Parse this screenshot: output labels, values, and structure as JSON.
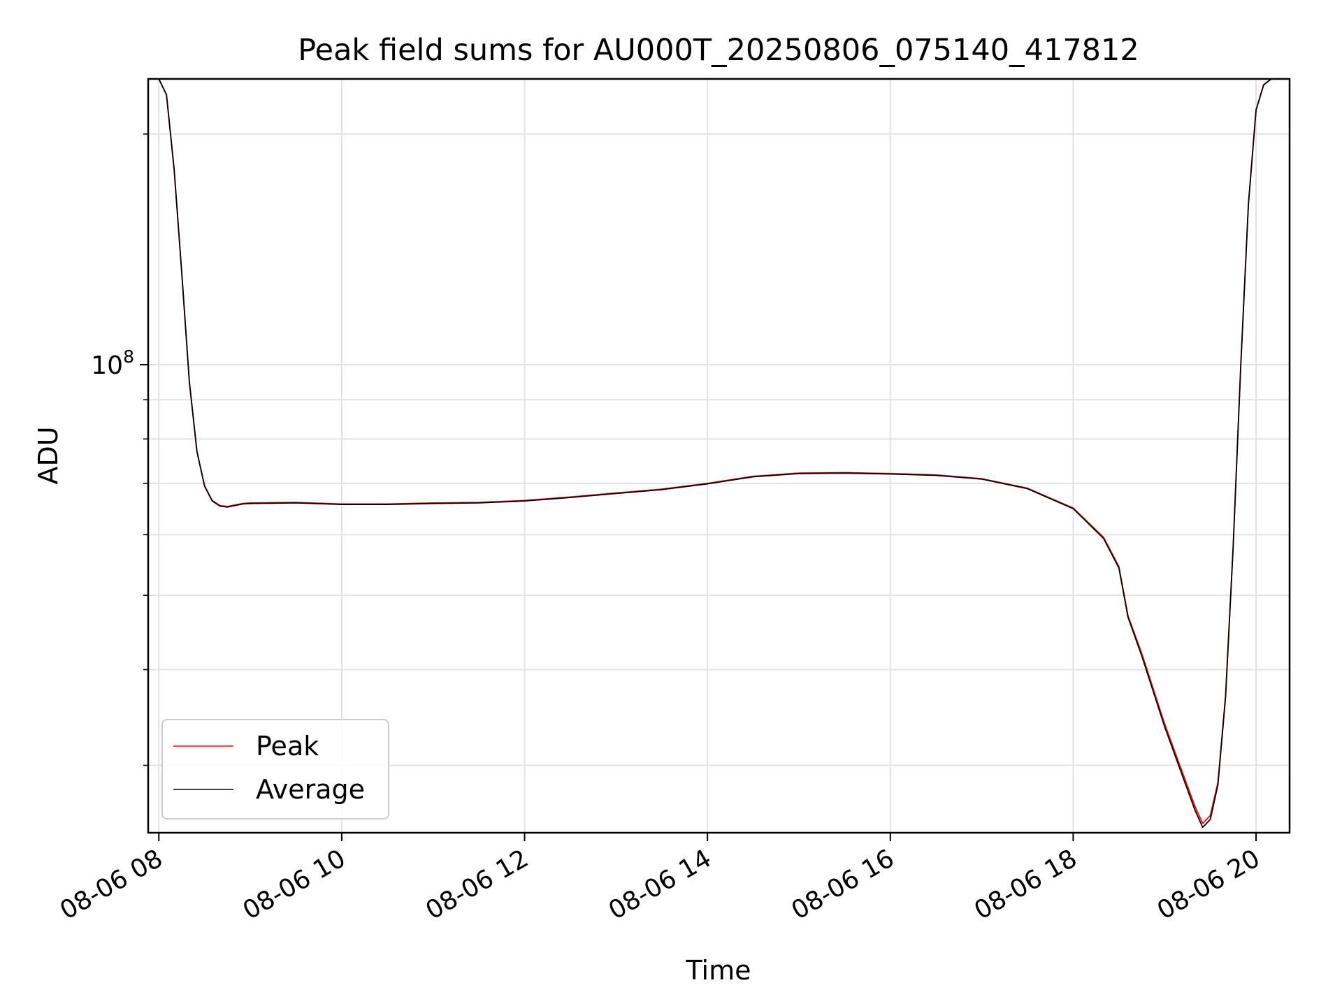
{
  "chart_data": {
    "type": "line",
    "title": "Peak field sums for AU000T_20250806_075140_417812",
    "xlabel": "Time",
    "ylabel": "ADU",
    "yscale": "log",
    "x_tick_labels": [
      "08-06 08",
      "08-06 10",
      "08-06 12",
      "08-06 14",
      "08-06 16",
      "08-06 18",
      "08-06 20"
    ],
    "y_tick_labels": [
      {
        "base": "10",
        "exp": "8"
      }
    ],
    "xlim": [
      "08-06 07:53",
      "08-06 20:22"
    ],
    "ylim": [
      24500000,
      236000000
    ],
    "grid": true,
    "legend": {
      "position": "lower-left",
      "entries": [
        "Peak",
        "Average"
      ]
    },
    "colors": {
      "Peak": "#ff0000",
      "Average": "#000000"
    },
    "x": [
      "08-06 08:00",
      "08-06 08:05",
      "08-06 08:10",
      "08-06 08:15",
      "08-06 08:20",
      "08-06 08:25",
      "08-06 08:30",
      "08-06 08:35",
      "08-06 08:40",
      "08-06 08:45",
      "08-06 08:50",
      "08-06 08:55",
      "08-06 09:00",
      "08-06 09:30",
      "08-06 10:00",
      "08-06 10:30",
      "08-06 11:00",
      "08-06 11:30",
      "08-06 12:00",
      "08-06 12:30",
      "08-06 13:00",
      "08-06 13:30",
      "08-06 14:00",
      "08-06 14:30",
      "08-06 15:00",
      "08-06 15:30",
      "08-06 16:00",
      "08-06 16:30",
      "08-06 17:00",
      "08-06 17:30",
      "08-06 18:00",
      "08-06 18:20",
      "08-06 18:30",
      "08-06 18:36",
      "08-06 18:45",
      "08-06 19:00",
      "08-06 19:10",
      "08-06 19:20",
      "08-06 19:25",
      "08-06 19:30",
      "08-06 19:35",
      "08-06 19:40",
      "08-06 19:45",
      "08-06 19:50",
      "08-06 19:55",
      "08-06 20:00",
      "08-06 20:05",
      "08-06 20:10",
      "08-06 20:15"
    ],
    "series": [
      {
        "name": "Peak",
        "values": [
          236000000,
          225000000,
          180000000,
          132000000,
          95000000,
          77000000,
          69500000,
          66500000,
          65500000,
          65300000,
          65600000,
          65900000,
          66000000,
          66100000,
          65800000,
          65800000,
          66000000,
          66100000,
          66500000,
          67200000,
          68000000,
          68800000,
          70000000,
          71500000,
          72200000,
          72300000,
          72100000,
          71800000,
          71000000,
          69000000,
          65000000,
          59500000,
          54500000,
          47000000,
          42000000,
          34000000,
          30000000,
          26500000,
          25200000,
          25800000,
          28500000,
          37000000,
          58000000,
          100000000,
          162000000,
          215000000,
          232000000,
          236000000,
          236000000
        ]
      },
      {
        "name": "Average",
        "values": [
          236000000,
          225000000,
          180000000,
          132000000,
          95000000,
          77000000,
          69400000,
          66400000,
          65400000,
          65200000,
          65500000,
          65800000,
          65900000,
          66000000,
          65700000,
          65700000,
          65900000,
          66000000,
          66400000,
          67100000,
          67900000,
          68700000,
          69900000,
          71400000,
          72100000,
          72200000,
          72000000,
          71700000,
          70900000,
          68900000,
          64900000,
          59300000,
          54300000,
          46800000,
          41700000,
          33700000,
          29700000,
          26200000,
          24900000,
          25500000,
          28300000,
          36800000,
          57800000,
          99800000,
          161800000,
          214800000,
          231800000,
          236000000,
          236000000
        ]
      }
    ]
  }
}
